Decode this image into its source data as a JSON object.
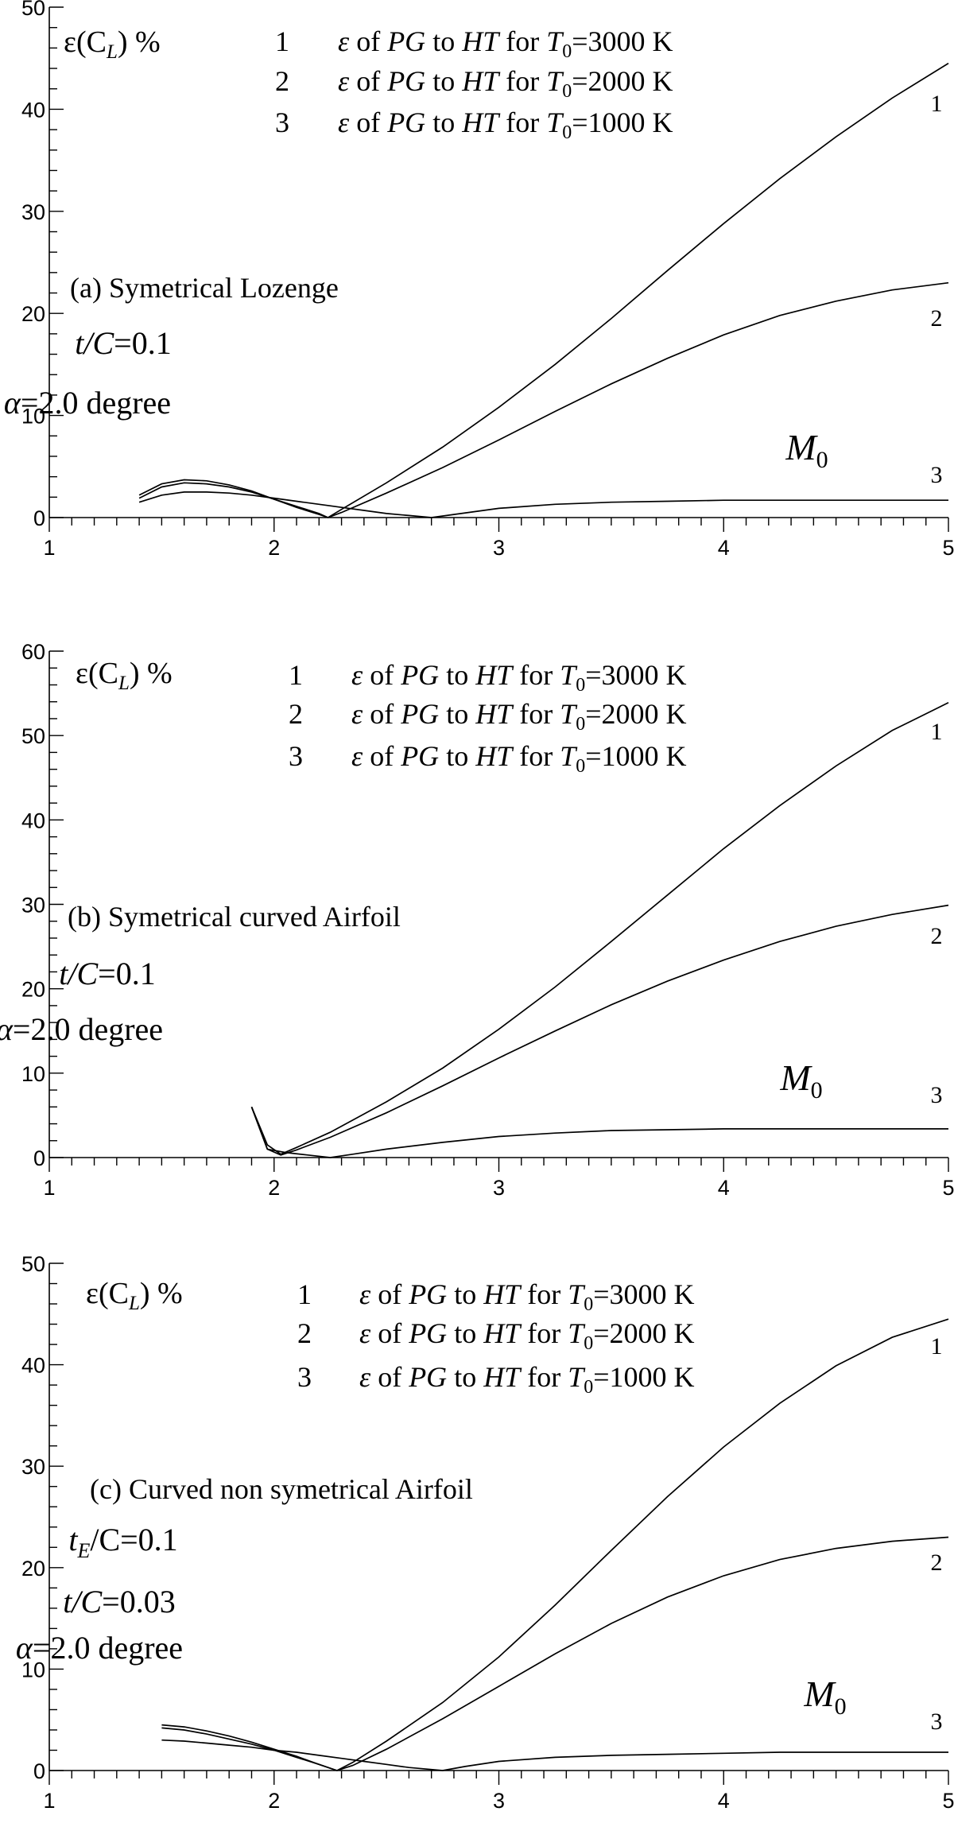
{
  "chart_data": [
    {
      "type": "line",
      "panel": "(a)",
      "title": "Symetrical Lozenge",
      "ylabel_base": "ε(C",
      "ylabel_sub": "L",
      "ylabel_unit": ")  %",
      "xlabel_base": "M",
      "xlabel_sub": "0",
      "xlim": [
        1,
        5
      ],
      "ylim": [
        0,
        50
      ],
      "x_ticks": [
        "1",
        "2",
        "3",
        "4",
        "5"
      ],
      "y_ticks": [
        "0",
        "10",
        "20",
        "30",
        "40",
        "50"
      ],
      "params": [
        {
          "base": "t/C",
          "sub": "",
          "value": "=0.1"
        },
        {
          "base": "α",
          "sub": "",
          "value": "=2.0 degree"
        }
      ],
      "legend": [
        {
          "num": "1",
          "text": "ε of PG to HT for T",
          "sub": "0",
          "tail": "=3000 K"
        },
        {
          "num": "2",
          "text": "ε of PG to HT for T",
          "sub": "0",
          "tail": "=2000 K"
        },
        {
          "num": "3",
          "text": "ε of PG to HT for T",
          "sub": "0",
          "tail": "=1000 K"
        }
      ],
      "series": [
        {
          "name": "1",
          "x": [
            1.4,
            1.5,
            1.6,
            1.7,
            1.8,
            1.9,
            2.0,
            2.1,
            2.2,
            2.24,
            2.3,
            2.5,
            2.75,
            3.0,
            3.25,
            3.5,
            3.75,
            4.0,
            4.25,
            4.5,
            4.75,
            5.0
          ],
          "y": [
            2.2,
            3.3,
            3.7,
            3.6,
            3.2,
            2.6,
            1.8,
            1.0,
            0.3,
            0.0,
            0.8,
            3.4,
            6.9,
            10.8,
            15.0,
            19.5,
            24.2,
            28.8,
            33.2,
            37.3,
            41.1,
            44.5
          ]
        },
        {
          "name": "2",
          "x": [
            1.4,
            1.5,
            1.6,
            1.7,
            1.8,
            1.9,
            2.0,
            2.1,
            2.2,
            2.24,
            2.3,
            2.5,
            2.75,
            3.0,
            3.25,
            3.5,
            3.75,
            4.0,
            4.25,
            4.5,
            4.75,
            5.0
          ],
          "y": [
            1.9,
            3.0,
            3.4,
            3.3,
            3.0,
            2.5,
            1.8,
            1.1,
            0.4,
            0.0,
            0.5,
            2.4,
            4.9,
            7.6,
            10.4,
            13.1,
            15.6,
            17.9,
            19.8,
            21.2,
            22.3,
            23.0
          ]
        },
        {
          "name": "3",
          "x": [
            1.4,
            1.5,
            1.6,
            1.7,
            1.8,
            1.9,
            2.0,
            2.1,
            2.2,
            2.3,
            2.4,
            2.5,
            2.6,
            2.7,
            2.8,
            3.0,
            3.25,
            3.5,
            3.75,
            4.0,
            4.25,
            4.5,
            4.75,
            5.0
          ],
          "y": [
            1.5,
            2.2,
            2.5,
            2.5,
            2.4,
            2.2,
            1.9,
            1.6,
            1.3,
            1.0,
            0.7,
            0.4,
            0.2,
            0.0,
            0.3,
            0.9,
            1.3,
            1.5,
            1.6,
            1.7,
            1.7,
            1.7,
            1.7,
            1.7
          ]
        }
      ]
    },
    {
      "type": "line",
      "panel": "(b)",
      "title": "Symetrical curved Airfoil",
      "ylabel_base": "ε(C",
      "ylabel_sub": "L",
      "ylabel_unit": ")  %",
      "xlabel_base": "M",
      "xlabel_sub": "0",
      "xlim": [
        1,
        5
      ],
      "ylim": [
        0,
        60
      ],
      "x_ticks": [
        "1",
        "2",
        "3",
        "4",
        "5"
      ],
      "y_ticks": [
        "0",
        "10",
        "20",
        "30",
        "40",
        "50",
        "60"
      ],
      "params": [
        {
          "base": "t/C",
          "sub": "",
          "value": "=0.1"
        },
        {
          "base": "α",
          "sub": "",
          "value": "=2.0 degree"
        }
      ],
      "legend": [
        {
          "num": "1",
          "text": "ε of PG to HT for T",
          "sub": "0",
          "tail": "=3000 K"
        },
        {
          "num": "2",
          "text": "ε of PG to HT for T",
          "sub": "0",
          "tail": "=2000 K"
        },
        {
          "num": "3",
          "text": "ε of PG to HT for T",
          "sub": "0",
          "tail": "=1000 K"
        }
      ],
      "series": [
        {
          "name": "1",
          "x": [
            1.9,
            1.97,
            2.03,
            2.1,
            2.25,
            2.5,
            2.75,
            3.0,
            3.25,
            3.5,
            3.75,
            4.0,
            4.25,
            4.5,
            4.75,
            5.0
          ],
          "y": [
            6.0,
            1.5,
            0.4,
            1.2,
            3.0,
            6.6,
            10.6,
            15.2,
            20.2,
            25.6,
            31.1,
            36.6,
            41.7,
            46.4,
            50.6,
            53.9
          ]
        },
        {
          "name": "2",
          "x": [
            1.9,
            1.97,
            2.03,
            2.1,
            2.25,
            2.5,
            2.75,
            3.0,
            3.25,
            3.5,
            3.75,
            4.0,
            4.25,
            4.5,
            4.75,
            5.0
          ],
          "y": [
            6.0,
            1.0,
            0.3,
            0.9,
            2.4,
            5.3,
            8.5,
            11.8,
            15.0,
            18.1,
            20.9,
            23.4,
            25.6,
            27.4,
            28.8,
            29.9
          ]
        },
        {
          "name": "3",
          "x": [
            1.9,
            1.97,
            2.05,
            2.15,
            2.25,
            2.35,
            2.5,
            2.75,
            3.0,
            3.25,
            3.5,
            3.75,
            4.0,
            4.25,
            4.5,
            4.75,
            5.0
          ],
          "y": [
            6.0,
            1.0,
            0.6,
            0.3,
            0.0,
            0.4,
            1.0,
            1.8,
            2.5,
            2.9,
            3.2,
            3.3,
            3.4,
            3.4,
            3.4,
            3.4,
            3.4
          ]
        }
      ]
    },
    {
      "type": "line",
      "panel": "(c)",
      "title": "Curved non symetrical Airfoil",
      "ylabel_base": "ε(C",
      "ylabel_sub": "L",
      "ylabel_unit": ")  %",
      "xlabel_base": "M",
      "xlabel_sub": "0",
      "xlim": [
        1,
        5
      ],
      "ylim": [
        0,
        50
      ],
      "x_ticks": [
        "1",
        "2",
        "3",
        "4",
        "5"
      ],
      "y_ticks": [
        "0",
        "10",
        "20",
        "30",
        "40",
        "50"
      ],
      "params": [
        {
          "base": "t",
          "sub": "E",
          "value": "/C=0.1"
        },
        {
          "base": "t/C",
          "sub": "",
          "value": "=0.03"
        },
        {
          "base": "α",
          "sub": "",
          "value": "=2.0 degree"
        }
      ],
      "legend": [
        {
          "num": "1",
          "text": "ε of PG to HT for T",
          "sub": "0",
          "tail": "=3000 K"
        },
        {
          "num": "2",
          "text": "ε of PG to HT for T",
          "sub": "0",
          "tail": "=2000 K"
        },
        {
          "num": "3",
          "text": "ε of PG to HT for T",
          "sub": "0",
          "tail": "=1000 K"
        }
      ],
      "series": [
        {
          "name": "1",
          "x": [
            1.5,
            1.6,
            1.7,
            1.8,
            1.9,
            2.0,
            2.1,
            2.2,
            2.28,
            2.35,
            2.5,
            2.75,
            3.0,
            3.25,
            3.5,
            3.75,
            4.0,
            4.25,
            4.5,
            4.75,
            5.0
          ],
          "y": [
            4.5,
            4.3,
            3.9,
            3.4,
            2.8,
            2.1,
            1.4,
            0.6,
            0.0,
            0.8,
            2.9,
            6.7,
            11.2,
            16.3,
            21.7,
            27.0,
            31.9,
            36.2,
            39.9,
            42.7,
            44.5
          ]
        },
        {
          "name": "2",
          "x": [
            1.5,
            1.6,
            1.7,
            1.8,
            1.9,
            2.0,
            2.1,
            2.2,
            2.28,
            2.35,
            2.5,
            2.75,
            3.0,
            3.25,
            3.5,
            3.75,
            4.0,
            4.25,
            4.5,
            4.75,
            5.0
          ],
          "y": [
            4.2,
            4.0,
            3.6,
            3.1,
            2.6,
            2.0,
            1.3,
            0.6,
            0.0,
            0.5,
            2.1,
            5.1,
            8.3,
            11.5,
            14.5,
            17.1,
            19.2,
            20.8,
            21.9,
            22.6,
            23.0
          ]
        },
        {
          "name": "3",
          "x": [
            1.5,
            1.6,
            1.7,
            1.8,
            1.9,
            2.0,
            2.1,
            2.2,
            2.3,
            2.4,
            2.5,
            2.6,
            2.7,
            2.75,
            2.85,
            3.0,
            3.25,
            3.5,
            3.75,
            4.0,
            4.25,
            4.5,
            4.75,
            5.0
          ],
          "y": [
            3.0,
            2.9,
            2.7,
            2.5,
            2.3,
            2.0,
            1.8,
            1.5,
            1.2,
            0.9,
            0.6,
            0.3,
            0.1,
            0.0,
            0.4,
            0.9,
            1.3,
            1.5,
            1.6,
            1.7,
            1.8,
            1.8,
            1.8,
            1.8
          ]
        }
      ]
    }
  ]
}
